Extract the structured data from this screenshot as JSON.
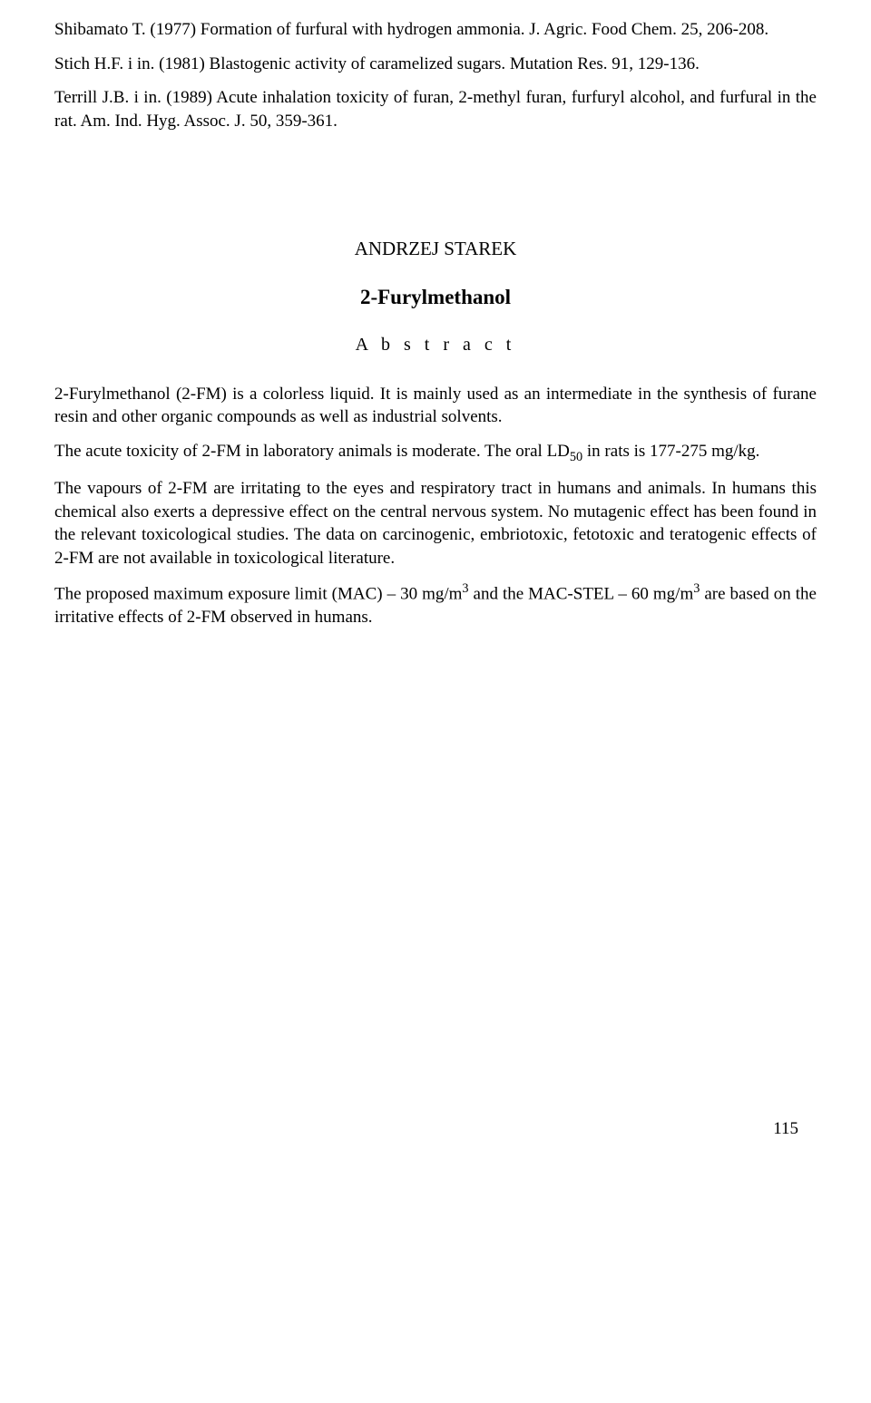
{
  "references": [
    "Shibamato T. (1977) Formation of furfural with hydrogen ammonia. J. Agric. Food Chem. 25, 206-208.",
    "Stich H.F. i in. (1981) Blastogenic activity of caramelized sugars. Mutation Res. 91, 129-136.",
    "Terrill J.B. i in. (1989) Acute inhalation toxicity of furan, 2-methyl furan, furfuryl alcohol, and furfural in the rat. Am. Ind. Hyg. Assoc. J. 50, 359-361."
  ],
  "author": "ANDRZEJ STAREK",
  "title": "2-Furylmethanol",
  "abstract_heading": "A b s t r a c t",
  "abstract": {
    "p1": "2-Furylmethanol (2-FM) is a colorless liquid. It is mainly used as an intermediate in the synthesis of furane resin and other organic compounds as well as industrial solvents.",
    "p2_a": "The acute toxicity of 2-FM in laboratory animals is moderate. The oral LD",
    "p2_b": " in rats is 177-275 mg/kg.",
    "p3": "The vapours of 2-FM are irritating to the eyes and respiratory tract in humans and animals. In humans this chemical also exerts a depressive effect on the central nervous system. No mutagenic effect has been found in the relevant toxicological studies. The data on carcinogenic, embriotoxic, fetotoxic and teratogenic effects of 2-FM are not available in toxicological literature.",
    "p4_a": "The proposed maximum exposure limit (MAC) – 30 mg/m",
    "p4_b": " and the MAC-STEL – 60 mg/m",
    "p4_c": " are based on the irritative effects of 2-FM observed in humans."
  },
  "page_number": "115",
  "sub50": "50",
  "sup3": "3"
}
